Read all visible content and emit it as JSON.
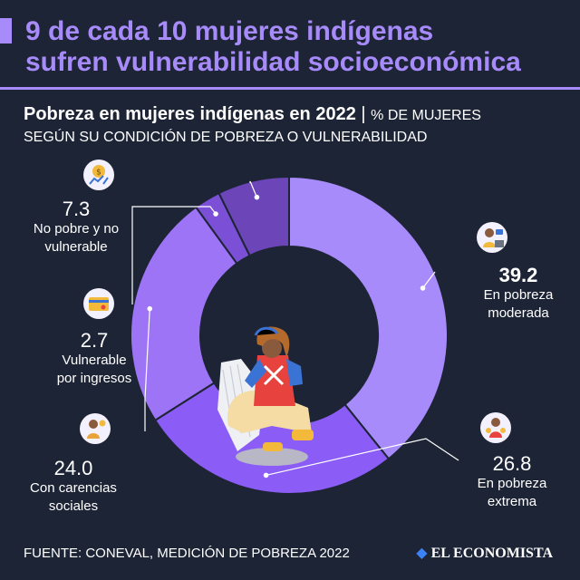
{
  "title_lines": [
    "9 de cada 10 mujeres indígenas",
    "sufren vulnerabilidad socioeconómica"
  ],
  "subtitle": {
    "bold": "Pobreza en mujeres indígenas en 2022",
    "separator": "|",
    "unit": "% DE MUJERES",
    "line2": "SEGÚN SU CONDICIÓN DE POBREZA O VULNERABILIDAD"
  },
  "chart_data": {
    "type": "pie",
    "variant": "donut",
    "order": "clockwise-from-top",
    "slices": [
      {
        "label": "En pobreza moderada",
        "value": 39.2,
        "value_text": "39.2",
        "label_lines": [
          "En pobreza",
          "moderada"
        ],
        "color": "#a78bfa",
        "icon": "worker-cashier-icon",
        "emphasis": true
      },
      {
        "label": "En pobreza extrema",
        "value": 26.8,
        "value_text": "26.8",
        "label_lines": [
          "En pobreza",
          "extrema"
        ],
        "color": "#8b5cf6",
        "icon": "mother-children-icon"
      },
      {
        "label": "Con carencias sociales",
        "value": 24.0,
        "value_text": "24.0",
        "label_lines": [
          "Con carencias",
          "sociales"
        ],
        "color": "#9d74f5",
        "icon": "woman-money-icon"
      },
      {
        "label": "Vulnerable por ingresos",
        "value": 2.7,
        "value_text": "2.7",
        "label_lines": [
          "Vulnerable",
          "por ingresos"
        ],
        "color": "#7b4fd6",
        "icon": "wallet-card-icon"
      },
      {
        "label": "No pobre y no vulnerable",
        "value": 7.3,
        "value_text": "7.3",
        "label_lines": [
          "No pobre y no",
          "vulnerable"
        ],
        "color": "#6c45b8",
        "icon": "money-growth-icon"
      }
    ]
  },
  "footer": {
    "source": "FUENTE: CONEVAL, MEDICIÓN DE POBREZA 2022",
    "brand": "EL ECONOMISTA"
  },
  "colors": {
    "background": "#1d2435",
    "accent": "#a78bfa"
  }
}
